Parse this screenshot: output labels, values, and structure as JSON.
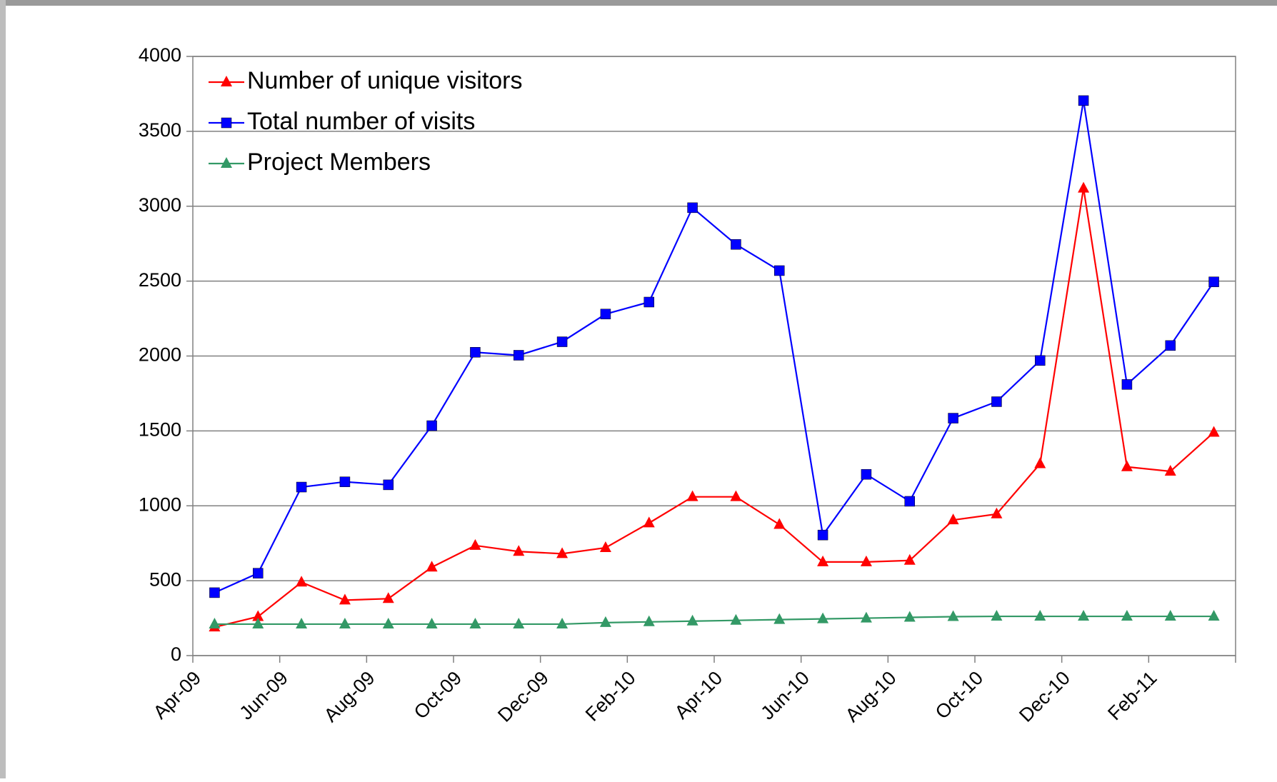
{
  "chart_data": {
    "type": "line",
    "categories": [
      "Apr-09",
      null,
      "Jun-09",
      null,
      "Aug-09",
      null,
      "Oct-09",
      null,
      "Dec-09",
      null,
      "Feb-10",
      null,
      "Apr-10",
      null,
      "Jun-10",
      null,
      "Aug-10",
      null,
      "Oct-10",
      null,
      "Dec-10",
      null,
      "Feb-11",
      null
    ],
    "series": [
      {
        "name": "Number of unique visitors",
        "color": "#ff0000",
        "marker": "triangle",
        "values": [
          190,
          260,
          490,
          370,
          380,
          590,
          735,
          695,
          680,
          720,
          885,
          1060,
          1060,
          875,
          625,
          625,
          635,
          905,
          945,
          1280,
          3120,
          1260,
          1230,
          1490
        ]
      },
      {
        "name": "Total number of visits",
        "color": "#0000ff",
        "marker": "square",
        "values": [
          420,
          550,
          1125,
          1160,
          1140,
          1535,
          2025,
          2005,
          2095,
          2280,
          2360,
          2990,
          2745,
          2570,
          805,
          1210,
          1030,
          1585,
          1695,
          1970,
          3705,
          1810,
          2070,
          2495
        ]
      },
      {
        "name": "Project Members",
        "color": "#339966",
        "marker": "triangle",
        "values": [
          210,
          210,
          210,
          210,
          210,
          210,
          210,
          210,
          210,
          220,
          225,
          230,
          235,
          240,
          245,
          250,
          255,
          260,
          262,
          262,
          262,
          262,
          262,
          262
        ]
      }
    ],
    "ylim": [
      0,
      4000
    ],
    "yticks": [
      0,
      500,
      1000,
      1500,
      2000,
      2500,
      3000,
      3500,
      4000
    ],
    "grid": true,
    "legend": "top-left"
  }
}
